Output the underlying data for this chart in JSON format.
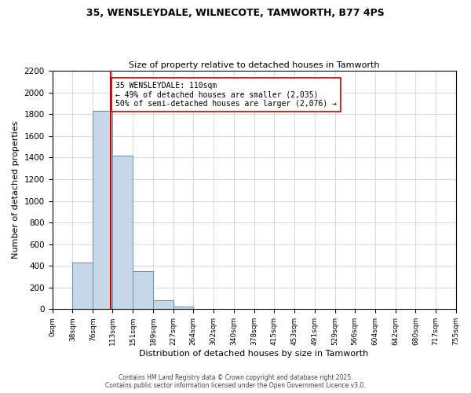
{
  "title1": "35, WENSLEYDALE, WILNECOTE, TAMWORTH, B77 4PS",
  "title2": "Size of property relative to detached houses in Tamworth",
  "xlabel": "Distribution of detached houses by size in Tamworth",
  "ylabel": "Number of detached properties",
  "bar_edges": [
    0,
    38,
    76,
    113,
    151,
    189,
    227,
    264,
    302,
    340,
    378,
    415,
    453,
    491,
    529,
    566,
    604,
    642,
    680,
    717,
    755
  ],
  "bar_heights": [
    0,
    430,
    1830,
    1420,
    350,
    80,
    25,
    0,
    0,
    0,
    0,
    0,
    0,
    0,
    0,
    0,
    0,
    0,
    0,
    0
  ],
  "bar_color": "#c8d8e8",
  "bar_edge_color": "#6090b0",
  "property_value": 110,
  "vline_color": "#cc0000",
  "annotation_text": "35 WENSLEYDALE: 110sqm\n← 49% of detached houses are smaller (2,035)\n50% of semi-detached houses are larger (2,076) →",
  "annotation_box_color": "white",
  "annotation_box_edge": "#cc0000",
  "ylim": [
    0,
    2200
  ],
  "ytick_step": 200,
  "footer1": "Contains HM Land Registry data © Crown copyright and database right 2025.",
  "footer2": "Contains public sector information licensed under the Open Government Licence v3.0.",
  "tick_labels": [
    "0sqm",
    "38sqm",
    "76sqm",
    "113sqm",
    "151sqm",
    "189sqm",
    "227sqm",
    "264sqm",
    "302sqm",
    "340sqm",
    "378sqm",
    "415sqm",
    "453sqm",
    "491sqm",
    "529sqm",
    "566sqm",
    "604sqm",
    "642sqm",
    "680sqm",
    "717sqm",
    "755sqm"
  ]
}
